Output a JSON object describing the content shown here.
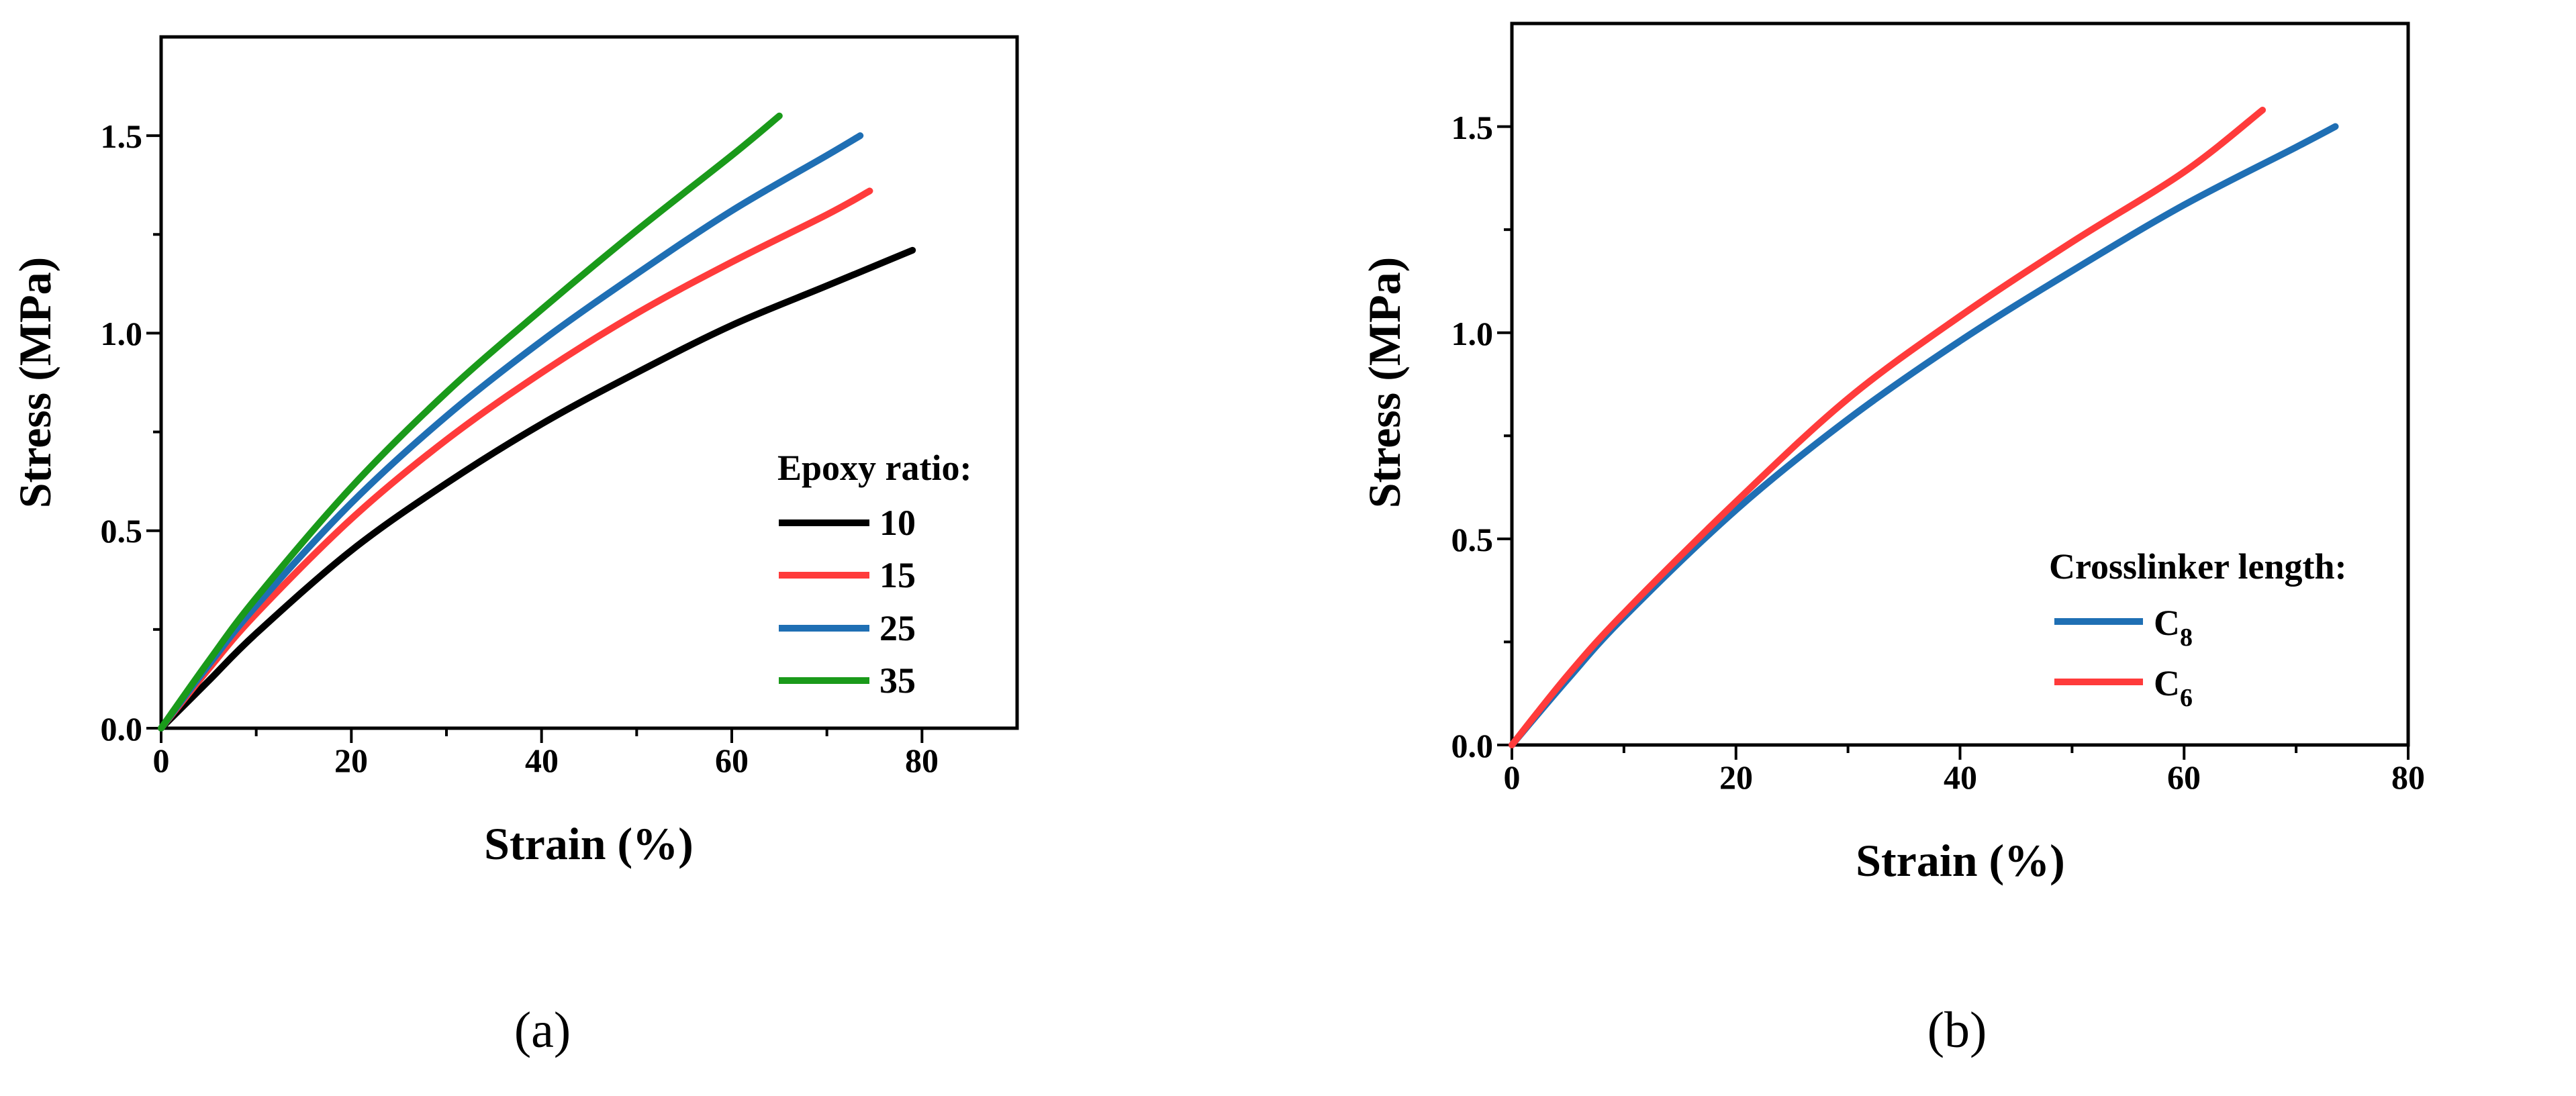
{
  "chart_data": [
    {
      "type": "line",
      "panel_label": "(a)",
      "xlabel": "Strain (%)",
      "ylabel": "Stress (MPa)",
      "xlim": [
        0,
        90
      ],
      "ylim": [
        0,
        1.75
      ],
      "xticks": [
        "0",
        "20",
        "40",
        "60",
        "80"
      ],
      "yticks": [
        "0.0",
        "0.5",
        "1.0",
        "1.5"
      ],
      "legend": {
        "title": "Epoxy ratio:",
        "position": "right-middle"
      },
      "series": [
        {
          "name": "10",
          "color": "#000000",
          "x": [
            0,
            5,
            10,
            20,
            30,
            40,
            50,
            60,
            70,
            79
          ],
          "y": [
            0,
            0.12,
            0.24,
            0.45,
            0.62,
            0.77,
            0.9,
            1.02,
            1.12,
            1.21
          ]
        },
        {
          "name": "15",
          "color": "#ff3b3b",
          "x": [
            0,
            5,
            10,
            20,
            30,
            40,
            50,
            60,
            70,
            74.5
          ],
          "y": [
            0,
            0.15,
            0.29,
            0.53,
            0.73,
            0.9,
            1.05,
            1.18,
            1.3,
            1.36
          ]
        },
        {
          "name": "25",
          "color": "#1f6fb4",
          "x": [
            0,
            5,
            10,
            20,
            30,
            40,
            50,
            60,
            70,
            73.5
          ],
          "y": [
            0,
            0.16,
            0.31,
            0.57,
            0.79,
            0.98,
            1.15,
            1.31,
            1.45,
            1.5
          ]
        },
        {
          "name": "35",
          "color": "#1a9a1a",
          "x": [
            0,
            5,
            10,
            20,
            30,
            40,
            50,
            60,
            65
          ],
          "y": [
            0,
            0.17,
            0.33,
            0.61,
            0.85,
            1.06,
            1.26,
            1.45,
            1.55
          ]
        }
      ]
    },
    {
      "type": "line",
      "panel_label": "(b)",
      "xlabel": "Strain (%)",
      "ylabel": "Stress (MPa)",
      "xlim": [
        0,
        80
      ],
      "ylim": [
        0,
        1.75
      ],
      "xticks": [
        "0",
        "20",
        "40",
        "60",
        "80"
      ],
      "yticks": [
        "0.0",
        "0.5",
        "1.0",
        "1.5"
      ],
      "legend": {
        "title": "Crosslinker length:",
        "position": "bottom-right"
      },
      "series": [
        {
          "name": "C",
          "sub": "8",
          "color": "#1f6fb4",
          "x": [
            0,
            5,
            10,
            20,
            30,
            40,
            50,
            60,
            70,
            73.5
          ],
          "y": [
            0,
            0.16,
            0.31,
            0.57,
            0.79,
            0.98,
            1.15,
            1.31,
            1.45,
            1.5
          ]
        },
        {
          "name": "C",
          "sub": "6",
          "color": "#ff3b3b",
          "x": [
            0,
            5,
            10,
            20,
            30,
            40,
            50,
            60,
            67
          ],
          "y": [
            0,
            0.17,
            0.32,
            0.59,
            0.84,
            1.04,
            1.22,
            1.39,
            1.54
          ]
        }
      ]
    }
  ]
}
